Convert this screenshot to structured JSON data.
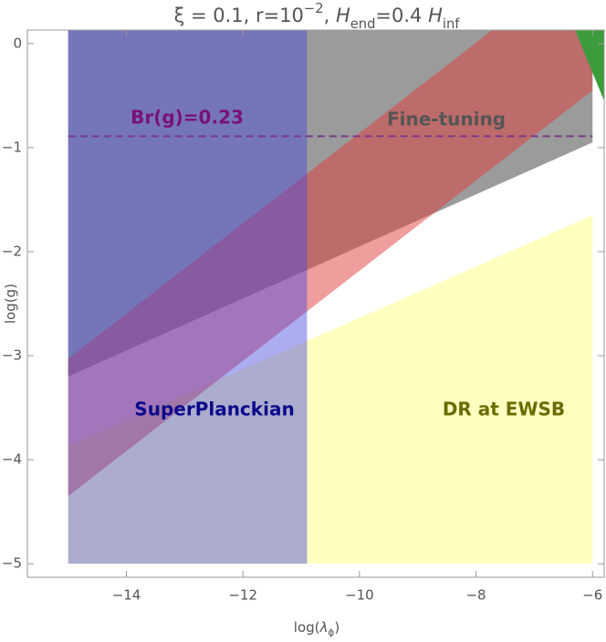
{
  "chart_data": {
    "type": "region",
    "title": [
      "ξ = 0.1, r=10",
      "−2",
      ", ",
      "H",
      "end",
      "=0.4 ",
      "H",
      "inf"
    ],
    "xlabel": [
      "log(",
      "λ",
      "ϕ",
      ")"
    ],
    "ylabel": "log(g)",
    "xlim": [
      -15.7,
      -5.8
    ],
    "ylim": [
      -5.13,
      0.13
    ],
    "xticks": [
      {
        "value": -14,
        "label": "−14"
      },
      {
        "value": -12,
        "label": "−12"
      },
      {
        "value": -10,
        "label": "−10"
      },
      {
        "value": -8,
        "label": "−8"
      },
      {
        "value": -6,
        "label": "−6"
      }
    ],
    "yticks": [
      0,
      {
        "value": -1,
        "label": "−1"
      },
      {
        "value": -2,
        "label": "−2"
      },
      {
        "value": -3,
        "label": "−3"
      },
      {
        "value": -4,
        "label": "−4"
      },
      {
        "value": -5,
        "label": "−5"
      }
    ],
    "regions": [
      {
        "label": "DR at EWSB",
        "color": "#ffffc0",
        "opacity": 1,
        "x": [
          -15,
          -6,
          -6,
          -15
        ],
        "y": [
          -5,
          -5,
          -1.65,
          -3.87
        ]
      },
      {
        "label": "Fine-tuning",
        "color": "#7a7a7a",
        "opacity": 0.75,
        "x": [
          -15,
          -6,
          -6,
          -15
        ],
        "y": [
          -3.2,
          -0.95,
          0.13,
          0.13
        ]
      },
      {
        "color": "#e03c3c",
        "opacity": 0.5,
        "x": [
          -15,
          -6,
          -6,
          -7.72,
          -15
        ],
        "y": [
          -4.35,
          -0.45,
          0.13,
          0.13,
          -3.03
        ]
      },
      {
        "color": "#3c9c3c",
        "opacity": 1,
        "x": [
          -6.3,
          -5.8,
          -5.8
        ],
        "y": [
          0.13,
          0.13,
          -0.55
        ]
      },
      {
        "label": "SuperPlanckian",
        "color": "#4848e0",
        "opacity": 0.45,
        "x": [
          -15,
          -10.9,
          -10.9,
          -15
        ],
        "y": [
          -5,
          -5,
          0.13,
          0.13
        ]
      }
    ],
    "line": {
      "label": "Br(g)=0.23",
      "color": "#7a3a8a",
      "x": [
        -15,
        -6
      ],
      "y": [
        -0.89,
        -0.89
      ]
    }
  }
}
